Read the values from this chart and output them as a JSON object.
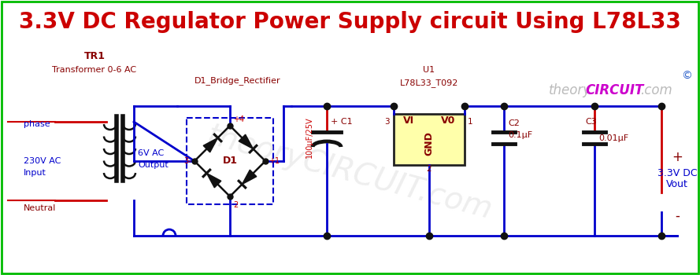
{
  "title": "3.3V DC Regulator Power Supply circuit Using L78L33",
  "title_color": "#cc0000",
  "title_fontsize": 20,
  "bg_color": "#ffffff",
  "border_color": "#00bb00",
  "blue": "#0000cc",
  "red": "#cc0000",
  "dark": "#111111",
  "comp_red": "#880000",
  "label_blue": "#0000cc",
  "ic_fill": "#ffffaa",
  "ic_border": "#222222",
  "watermark_gray": "#bbbbbb",
  "watermark_magenta": "#cc00cc",
  "copyright_blue": "#3333cc",
  "copyright": "©"
}
